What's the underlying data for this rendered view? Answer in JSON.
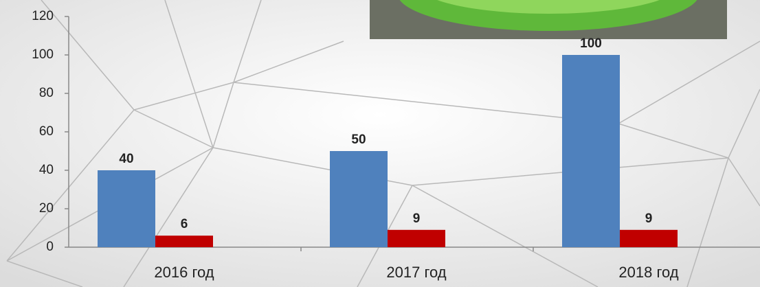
{
  "chart_data": {
    "type": "bar",
    "categories": [
      "2016 год",
      "2017 год",
      "2018 год"
    ],
    "series": [
      {
        "color": "#4f81bd",
        "values": [
          40,
          50,
          100
        ]
      },
      {
        "color": "#c00000",
        "values": [
          6,
          9,
          9
        ]
      }
    ],
    "ylim": [
      0,
      120
    ],
    "yticks": [
      0,
      20,
      40,
      60,
      80,
      100,
      120
    ]
  }
}
